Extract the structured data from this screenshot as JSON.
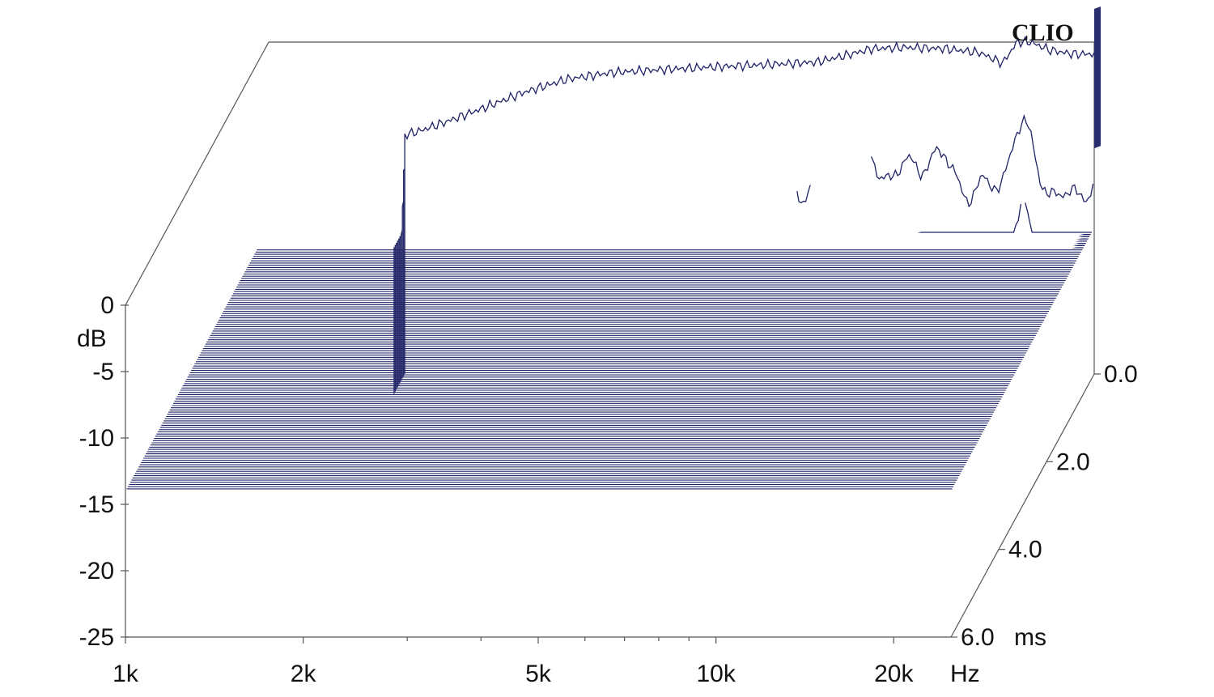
{
  "chart_data": {
    "type": "waterfall",
    "brand": "CLIO",
    "x_axis": {
      "scale": "log",
      "range": [
        1000,
        25000
      ],
      "tick_values": [
        1000,
        2000,
        5000,
        10000,
        20000
      ],
      "tick_labels": [
        "1k",
        "2k",
        "5k",
        "10k",
        "20k"
      ],
      "unit": "Hz"
    },
    "y_axis": {
      "range": [
        -25,
        0
      ],
      "tick_values": [
        0,
        -5,
        -10,
        -15,
        -20,
        -25
      ],
      "tick_labels": [
        "0",
        "-5",
        "-10",
        "-15",
        "-20",
        "-25"
      ],
      "unit": "dB"
    },
    "z_axis": {
      "range": [
        0,
        6
      ],
      "tick_values": [
        0,
        2,
        4,
        6
      ],
      "tick_labels": [
        "0.0",
        "2.0",
        "4.0",
        "6.0"
      ],
      "unit": "ms"
    },
    "colors": {
      "line": "#1f2366",
      "frame": "#555555",
      "wall": "#2a2d6e"
    },
    "slices": {
      "count": 120,
      "first_slice_response": {
        "freq_hz": [
          1700,
          1800,
          2000,
          2300,
          2700,
          3200,
          3800,
          4500,
          5500,
          7000,
          8500,
          9500,
          10500,
          12000,
          14000,
          16000,
          17500,
          18500,
          19500,
          21000,
          23000,
          25000
        ],
        "db": [
          -7.0,
          -6.7,
          -6.0,
          -5.0,
          -3.8,
          -2.8,
          -2.3,
          -2.1,
          -1.9,
          -1.7,
          -1.5,
          -1.0,
          -0.5,
          -0.4,
          -0.5,
          -0.8,
          -1.6,
          0.0,
          0.0,
          -0.6,
          -0.9,
          -0.9
        ]
      }
    }
  }
}
